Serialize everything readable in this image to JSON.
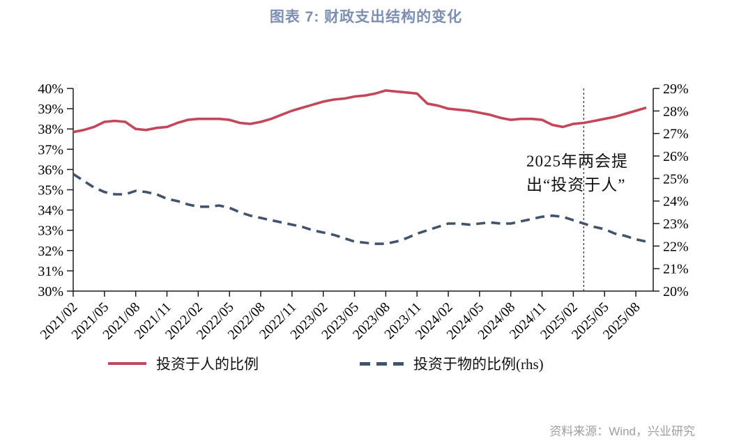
{
  "title": "图表 7: 财政支出结构的变化",
  "source": "资料来源：Wind，兴业研究",
  "annotation": {
    "line1": "2025年两会提",
    "line2": "出“投资于人”"
  },
  "legend": [
    {
      "label": "投资于人的比例",
      "style": "solid",
      "color": "#C3475A"
    },
    {
      "label": "投资于物的比例(rhs)",
      "style": "dashed",
      "color": "#42536C"
    }
  ],
  "colors": {
    "title": "#7C8FB2",
    "axis": "#1A1A1A",
    "source": "#9E9E9E",
    "vline": "#3A3A3A",
    "invest_in_people_line": "#C3475A",
    "invest_in_things_line": "#42536C"
  },
  "chart_data": {
    "type": "line",
    "title": "图表 7: 财政支出结构的变化",
    "x_tick_step": 3,
    "grid": false,
    "legend_position": "bottom",
    "left_axis": {
      "min": 30,
      "max": 40,
      "step": 1,
      "unit": "%"
    },
    "right_axis": {
      "min": 20,
      "max": 29,
      "step": 1,
      "unit": "%"
    },
    "vline": {
      "date": "2025/03",
      "label": "2025年两会提出“投资于人”"
    },
    "x": [
      "2021/02",
      "2021/03",
      "2021/04",
      "2021/05",
      "2021/06",
      "2021/07",
      "2021/08",
      "2021/09",
      "2021/10",
      "2021/11",
      "2021/12",
      "2022/01",
      "2022/02",
      "2022/03",
      "2022/04",
      "2022/05",
      "2022/06",
      "2022/07",
      "2022/08",
      "2022/09",
      "2022/10",
      "2022/11",
      "2022/12",
      "2023/01",
      "2023/02",
      "2023/03",
      "2023/04",
      "2023/05",
      "2023/06",
      "2023/07",
      "2023/08",
      "2023/09",
      "2023/10",
      "2023/11",
      "2023/12",
      "2024/01",
      "2024/02",
      "2024/03",
      "2024/04",
      "2024/05",
      "2024/06",
      "2024/07",
      "2024/08",
      "2024/09",
      "2024/10",
      "2024/11",
      "2024/12",
      "2025/01",
      "2025/02",
      "2025/03",
      "2025/04",
      "2025/05",
      "2025/06",
      "2025/07",
      "2025/08",
      "2025/09"
    ],
    "series": [
      {
        "name": "投资于人的比例",
        "axis": "left",
        "style": "solid",
        "color": "#C3475A",
        "values": [
          37.85,
          37.95,
          38.1,
          38.35,
          38.4,
          38.35,
          38.0,
          37.95,
          38.05,
          38.1,
          38.3,
          38.45,
          38.5,
          38.5,
          38.5,
          38.45,
          38.3,
          38.25,
          38.35,
          38.5,
          38.7,
          38.9,
          39.05,
          39.2,
          39.35,
          39.45,
          39.5,
          39.6,
          39.65,
          39.75,
          39.9,
          39.85,
          39.8,
          39.75,
          39.25,
          39.15,
          39.0,
          38.95,
          38.9,
          38.8,
          38.7,
          38.55,
          38.45,
          38.5,
          38.5,
          38.45,
          38.2,
          38.1,
          38.25,
          38.3,
          38.4,
          38.5,
          38.6,
          38.75,
          38.9,
          39.05
        ]
      },
      {
        "name": "投资于物的比例(rhs)",
        "axis": "right",
        "style": "dashed",
        "color": "#42536C",
        "values": [
          25.2,
          24.9,
          24.6,
          24.4,
          24.3,
          24.3,
          24.45,
          24.4,
          24.3,
          24.1,
          24.0,
          23.85,
          23.75,
          23.75,
          23.8,
          23.7,
          23.5,
          23.35,
          23.25,
          23.15,
          23.05,
          22.95,
          22.85,
          22.7,
          22.6,
          22.5,
          22.35,
          22.2,
          22.15,
          22.1,
          22.1,
          22.2,
          22.35,
          22.55,
          22.7,
          22.85,
          23.0,
          23.0,
          22.95,
          23.0,
          23.05,
          23.0,
          23.0,
          23.1,
          23.2,
          23.3,
          23.35,
          23.3,
          23.15,
          23.0,
          22.85,
          22.75,
          22.55,
          22.45,
          22.3,
          22.2
        ]
      }
    ]
  }
}
